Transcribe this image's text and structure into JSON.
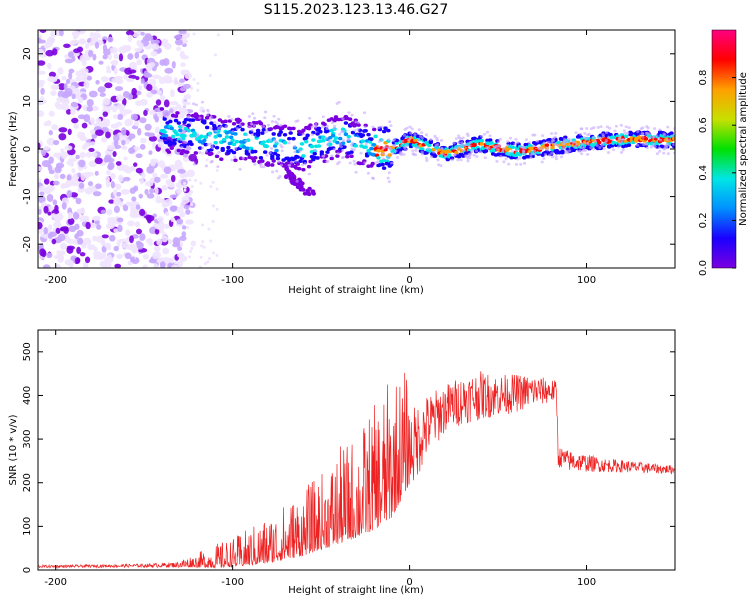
{
  "title": "S115.2023.123.13.46.G27",
  "colors": {
    "snr_line": "#ee2222",
    "blob": "#7b00e0",
    "colormap": [
      "#efe3ff",
      "#c7a6ff",
      "#7b00e0",
      "#1a00ff",
      "#0090ff",
      "#00e6e6",
      "#00e000",
      "#c8e000",
      "#ffa000",
      "#ff0000",
      "#ff0080"
    ]
  },
  "chart_data": [
    {
      "type": "heatmap",
      "name": "spectrogram",
      "xlabel": "Height of straight line (km)",
      "ylabel": "Frequency (Hz)",
      "xlim": [
        -210,
        150
      ],
      "ylim": [
        -25,
        25
      ],
      "xticks": [
        -200,
        -100,
        0,
        100
      ],
      "xticklabels": [
        "-200",
        "-100",
        "0",
        "100"
      ],
      "yticks": [
        -20,
        -10,
        0,
        10,
        20
      ],
      "yticklabels": [
        "-20",
        "-10",
        "0",
        "10",
        "20"
      ],
      "colorbar": {
        "label": "Normalized spectral amplitude",
        "range": [
          0,
          1
        ],
        "ticks": [
          0.0,
          0.2,
          0.4,
          0.6,
          0.8
        ],
        "ticklabels": [
          "0.0",
          "0.2",
          "0.4",
          "0.6",
          "0.8"
        ]
      },
      "signal_track": {
        "x": [
          -140,
          -120,
          -100,
          -80,
          -60,
          -40,
          -20,
          -10,
          0,
          20,
          40,
          60,
          80,
          100,
          120,
          150
        ],
        "freq": [
          4,
          3,
          2,
          1,
          0,
          3,
          0,
          0,
          2,
          -1,
          1,
          -0.5,
          0.5,
          1.5,
          2,
          2
        ]
      },
      "noise_region_x": [
        -210,
        -125
      ]
    },
    {
      "type": "line",
      "name": "snr",
      "xlabel": "Height of straight line (km)",
      "ylabel": "SNR (10 * v/v)",
      "xlim": [
        -210,
        150
      ],
      "ylim": [
        0,
        550
      ],
      "xticks": [
        -200,
        -100,
        0,
        100
      ],
      "xticklabels": [
        "-200",
        "-100",
        "0",
        "100"
      ],
      "yticks": [
        0,
        100,
        200,
        300,
        400,
        500
      ],
      "yticklabels": [
        "0",
        "100",
        "200",
        "300",
        "400",
        "500"
      ],
      "series": [
        {
          "name": "SNR",
          "x": [
            -210,
            -180,
            -150,
            -130,
            -120,
            -110,
            -100,
            -90,
            -80,
            -70,
            -60,
            -50,
            -40,
            -30,
            -20,
            -10,
            0,
            10,
            20,
            30,
            40,
            50,
            60,
            70,
            80,
            83,
            84,
            90,
            100,
            110,
            120,
            130,
            140,
            150
          ],
          "baseline": [
            8,
            9,
            10,
            12,
            15,
            20,
            25,
            35,
            45,
            60,
            75,
            95,
            120,
            140,
            170,
            210,
            270,
            330,
            370,
            390,
            400,
            400,
            405,
            410,
            410,
            410,
            260,
            250,
            245,
            240,
            238,
            235,
            232,
            230
          ],
          "spread": [
            4,
            4,
            5,
            8,
            15,
            25,
            30,
            40,
            50,
            60,
            70,
            80,
            100,
            110,
            130,
            150,
            120,
            90,
            70,
            70,
            70,
            60,
            55,
            45,
            35,
            30,
            30,
            30,
            25,
            20,
            18,
            16,
            14,
            12
          ]
        }
      ]
    }
  ]
}
